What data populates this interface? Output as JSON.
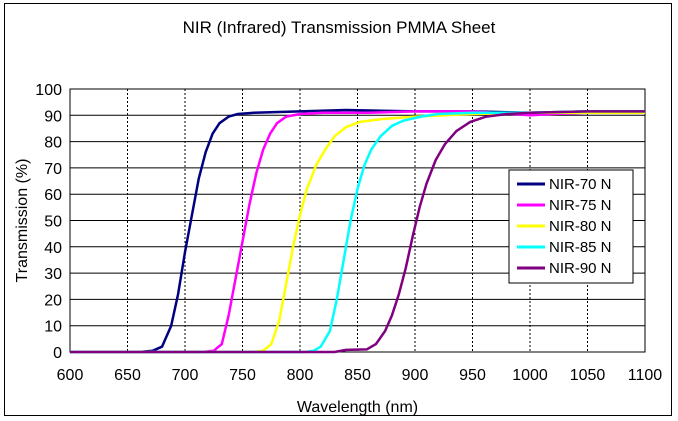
{
  "chart_data": {
    "type": "line",
    "title": "NIR (Infrared) Transmission PMMA Sheet",
    "xlabel": "Wavelength (nm)",
    "ylabel": "Transmission (%)",
    "xlim": [
      600,
      1100
    ],
    "ylim": [
      0,
      100
    ],
    "x_ticks": [
      600,
      650,
      700,
      750,
      800,
      850,
      900,
      950,
      1000,
      1050,
      1100
    ],
    "y_ticks": [
      0,
      10,
      20,
      30,
      40,
      50,
      60,
      70,
      80,
      90,
      100
    ],
    "grid": "vertical dashed, horizontal solid",
    "legend_position": "right",
    "series": [
      {
        "name": "NIR-70 N",
        "color": "#000080",
        "points": [
          [
            600,
            0
          ],
          [
            660,
            0
          ],
          [
            672,
            0.5
          ],
          [
            680,
            2
          ],
          [
            688,
            10
          ],
          [
            694,
            22
          ],
          [
            700,
            38
          ],
          [
            706,
            52
          ],
          [
            712,
            66
          ],
          [
            718,
            76
          ],
          [
            724,
            83
          ],
          [
            730,
            87
          ],
          [
            738,
            89.5
          ],
          [
            746,
            90.5
          ],
          [
            760,
            91
          ],
          [
            800,
            91.5
          ],
          [
            840,
            92
          ],
          [
            900,
            91.5
          ],
          [
            950,
            91.5
          ],
          [
            1000,
            91
          ],
          [
            1050,
            91.5
          ],
          [
            1100,
            91.5
          ]
        ]
      },
      {
        "name": "NIR-75 N",
        "color": "#ff00ff",
        "points": [
          [
            600,
            0
          ],
          [
            715,
            0
          ],
          [
            725,
            0.5
          ],
          [
            732,
            3
          ],
          [
            738,
            14
          ],
          [
            744,
            28
          ],
          [
            750,
            42
          ],
          [
            756,
            56
          ],
          [
            762,
            68
          ],
          [
            768,
            77
          ],
          [
            774,
            83
          ],
          [
            780,
            87
          ],
          [
            788,
            89.5
          ],
          [
            800,
            90.5
          ],
          [
            820,
            91
          ],
          [
            860,
            91
          ],
          [
            900,
            91.5
          ],
          [
            950,
            91.5
          ],
          [
            1000,
            90
          ],
          [
            1020,
            90.5
          ],
          [
            1050,
            91
          ],
          [
            1100,
            91
          ]
        ]
      },
      {
        "name": "NIR-80 N",
        "color": "#ffff00",
        "points": [
          [
            600,
            0
          ],
          [
            760,
            0
          ],
          [
            768,
            0.5
          ],
          [
            775,
            3
          ],
          [
            782,
            12
          ],
          [
            788,
            26
          ],
          [
            794,
            40
          ],
          [
            800,
            52
          ],
          [
            806,
            62
          ],
          [
            814,
            71
          ],
          [
            822,
            77
          ],
          [
            830,
            82
          ],
          [
            840,
            85.5
          ],
          [
            852,
            87.5
          ],
          [
            870,
            88.5
          ],
          [
            900,
            89.5
          ],
          [
            950,
            90.5
          ],
          [
            1000,
            91
          ],
          [
            1050,
            91
          ],
          [
            1100,
            91
          ]
        ]
      },
      {
        "name": "NIR-85 N",
        "color": "#00ffff",
        "points": [
          [
            600,
            0
          ],
          [
            805,
            0
          ],
          [
            812,
            0.5
          ],
          [
            818,
            2
          ],
          [
            826,
            8
          ],
          [
            832,
            20
          ],
          [
            838,
            35
          ],
          [
            844,
            50
          ],
          [
            850,
            62
          ],
          [
            856,
            71
          ],
          [
            862,
            77
          ],
          [
            870,
            82
          ],
          [
            880,
            86
          ],
          [
            890,
            88
          ],
          [
            905,
            89.5
          ],
          [
            920,
            90.5
          ],
          [
            950,
            91
          ],
          [
            1000,
            91
          ],
          [
            1050,
            91.5
          ],
          [
            1100,
            91.5
          ]
        ]
      },
      {
        "name": "NIR-90 N",
        "color": "#800080",
        "points": [
          [
            600,
            0
          ],
          [
            830,
            0
          ],
          [
            840,
            0.8
          ],
          [
            858,
            1
          ],
          [
            866,
            3
          ],
          [
            874,
            8
          ],
          [
            880,
            14
          ],
          [
            886,
            22
          ],
          [
            892,
            32
          ],
          [
            898,
            44
          ],
          [
            904,
            55
          ],
          [
            910,
            64
          ],
          [
            918,
            73
          ],
          [
            926,
            79
          ],
          [
            936,
            84
          ],
          [
            948,
            87.5
          ],
          [
            962,
            89.5
          ],
          [
            980,
            90.5
          ],
          [
            1000,
            91
          ],
          [
            1050,
            91.5
          ],
          [
            1100,
            91.5
          ]
        ]
      }
    ]
  }
}
